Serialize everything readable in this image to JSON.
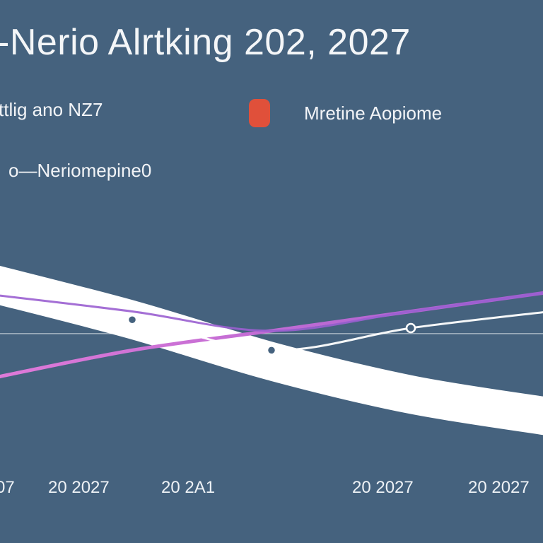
{
  "title": "-Nerio Alrtking 202, 2027",
  "legend": {
    "left_text": "ttlig ano NZ7",
    "right_text": "Mretine Aopiome",
    "marker_color": "#e0503a"
  },
  "subtitle": "o—Neriomepine0",
  "colors": {
    "background": "#45627e",
    "band": "#ffffff",
    "pink_line": "#cf6ad8",
    "purple_line": "#9a5fd0",
    "thin_line": "#ffffff",
    "baseline": "#d7dde4"
  },
  "chart_data": {
    "type": "line",
    "title": "-Nerio Alrtking 202, 2027",
    "x_tick_labels": [
      "07",
      "20 2027",
      "20 2A1",
      "20 2027",
      "20 2027"
    ],
    "x": [
      0,
      1,
      2,
      3,
      4
    ],
    "ylim": [
      0,
      100
    ],
    "grid": false,
    "legend_position": "top",
    "series": [
      {
        "name": "",
        "style": "band",
        "values": [
          66,
          53,
          38,
          26,
          18
        ],
        "width": 18
      },
      {
        "name": "",
        "style": "pink",
        "values": [
          32,
          42,
          49,
          56,
          63
        ]
      },
      {
        "name": "",
        "style": "purple",
        "values": [
          62,
          56,
          49,
          56,
          63
        ]
      },
      {
        "name": "",
        "style": "thin",
        "values": [
          59,
          53,
          42,
          50,
          56
        ]
      }
    ],
    "baseline_value": 48
  }
}
